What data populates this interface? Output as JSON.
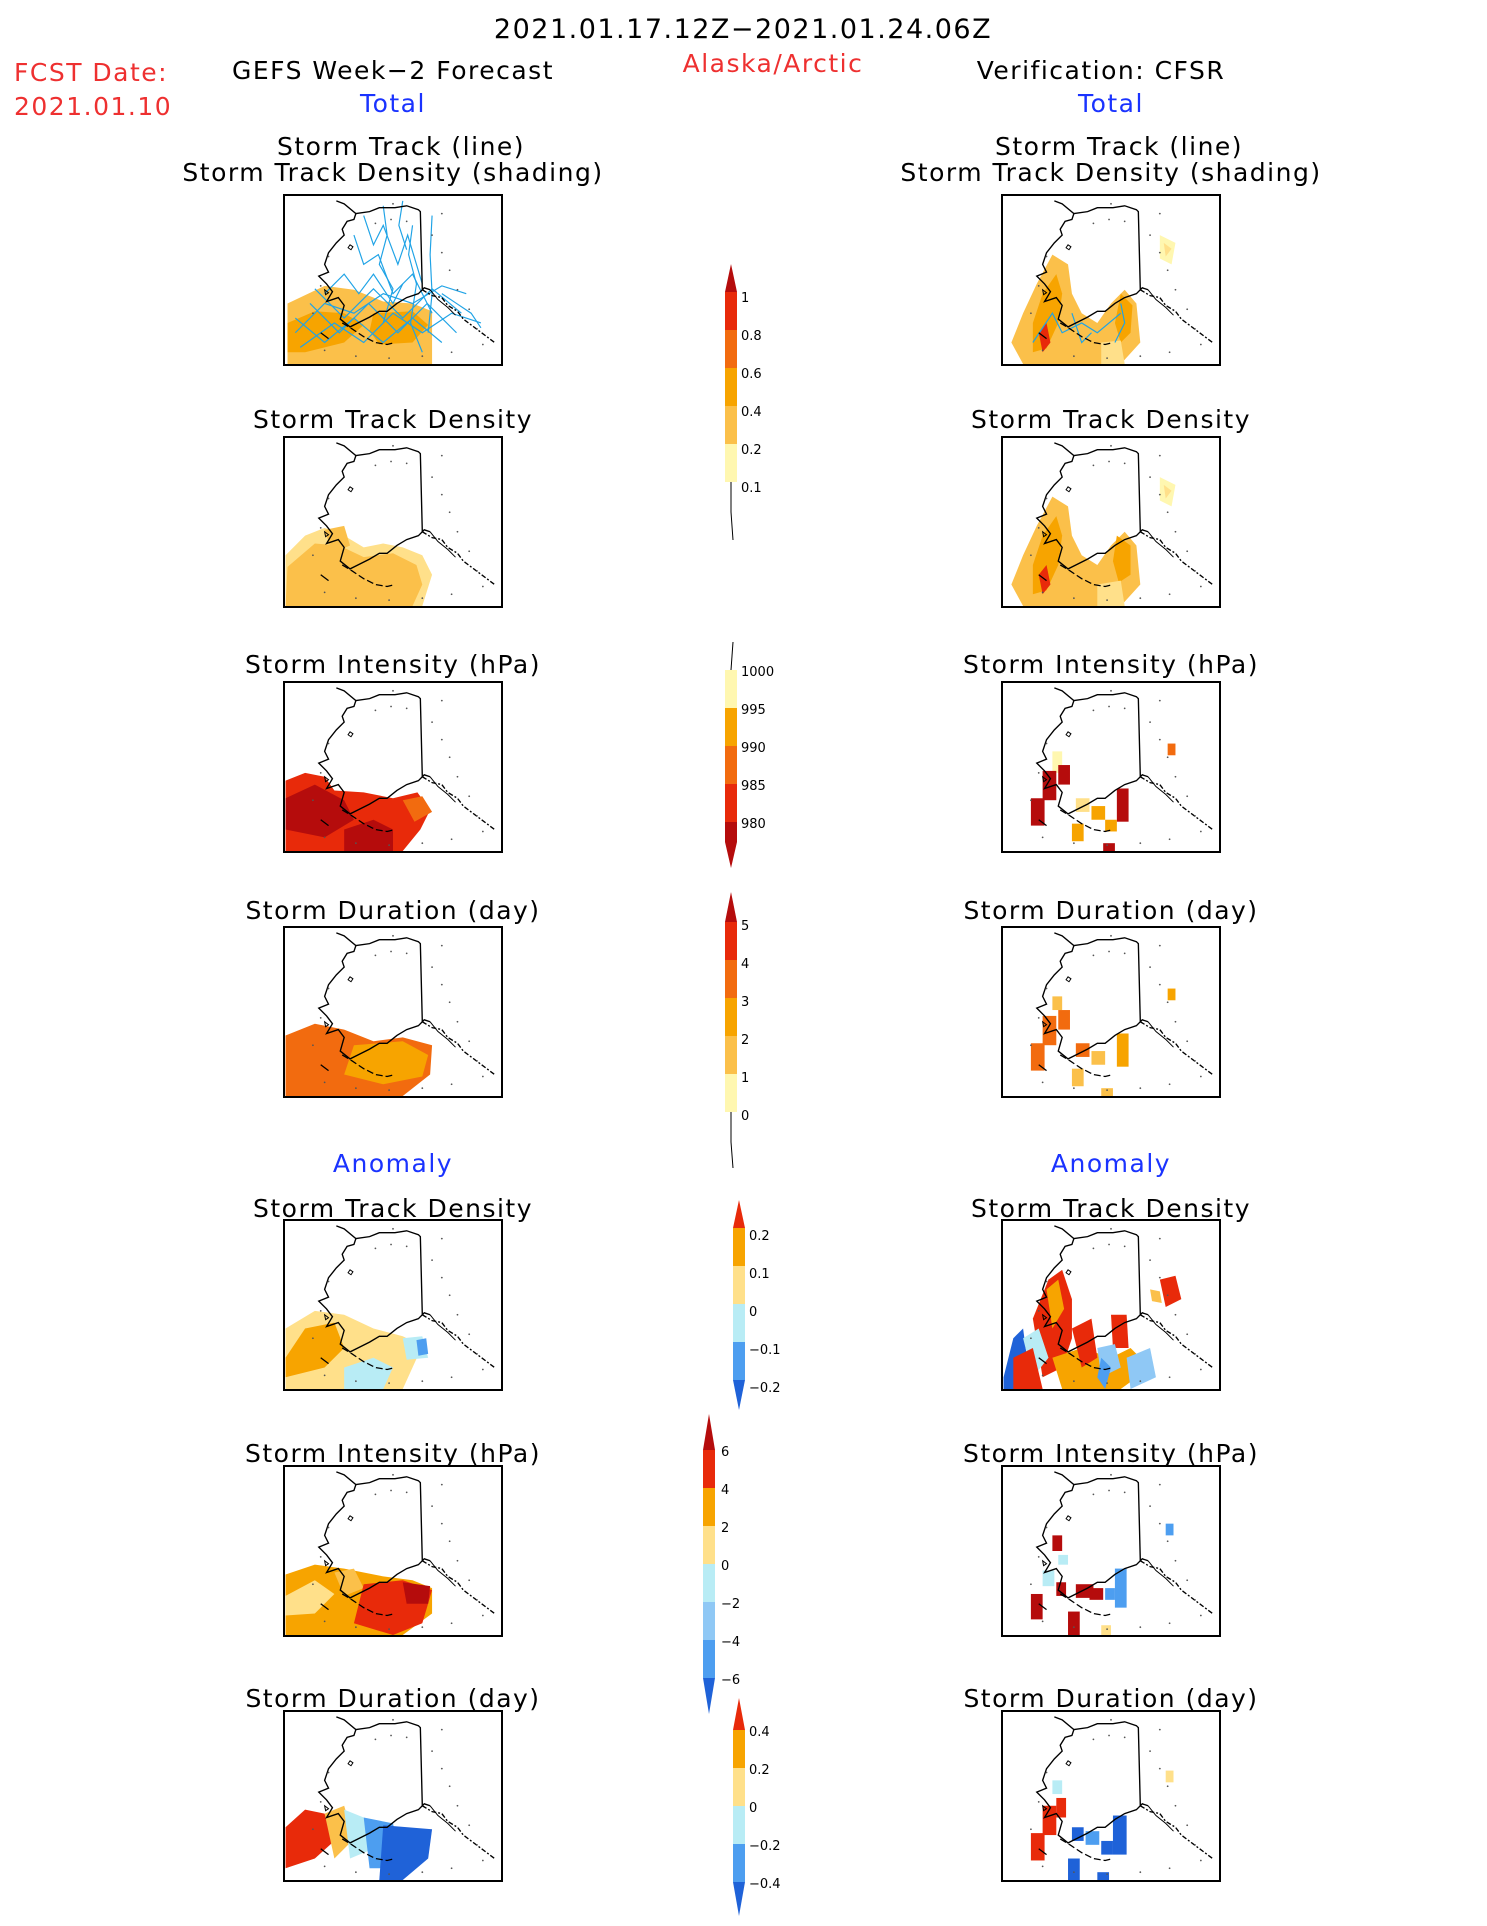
{
  "header": {
    "date_range": "2021.01.17.12Z−2021.01.24.06Z",
    "fcst_label": "FCST Date:",
    "fcst_date": "2021.01.10",
    "left_title": "GEFS Week−2 Forecast",
    "region": "Alaska/Arctic",
    "right_title": "Verification: CFSR",
    "left_total": "Total",
    "right_total": "Total",
    "left_anomaly": "Anomaly",
    "right_anomaly": "Anomaly"
  },
  "panel_titles": {
    "track_line": "Storm Track (line)",
    "track_density_shading": "Storm Track Density (shading)",
    "density": "Storm Track Density",
    "intensity": "Storm Intensity (hPa)",
    "duration": "Storm Duration (day)"
  },
  "colors": {
    "c_light_yellow": "#fff7b0",
    "c_yellow": "#ffe08a",
    "c_light_orange": "#fbc04a",
    "c_orange": "#f7a400",
    "c_dark_orange": "#f26b0f",
    "c_red": "#e82a0a",
    "c_dark_red": "#b50c0c",
    "c_light_blue": "#b8ecf5",
    "c_mid_blue": "#8fc8f5",
    "c_blue": "#4d9ef0",
    "c_dark_blue": "#1f62d8",
    "track_line": "#1fa3e6"
  },
  "colorbars": {
    "density_total": [
      "1",
      "0.8",
      "0.6",
      "0.4",
      "0.2",
      "0.1"
    ],
    "intensity_total": [
      "1000",
      "995",
      "990",
      "985",
      "980"
    ],
    "duration_total": [
      "5",
      "4",
      "3",
      "2",
      "1",
      "0"
    ],
    "density_anom": [
      "0.2",
      "0.1",
      "0",
      "−0.1",
      "−0.2"
    ],
    "intensity_anom": [
      "6",
      "4",
      "2",
      "0",
      "−2",
      "−4",
      "−6"
    ],
    "duration_anom": [
      "0.4",
      "0.2",
      "0",
      "−0.2",
      "−0.4"
    ]
  }
}
